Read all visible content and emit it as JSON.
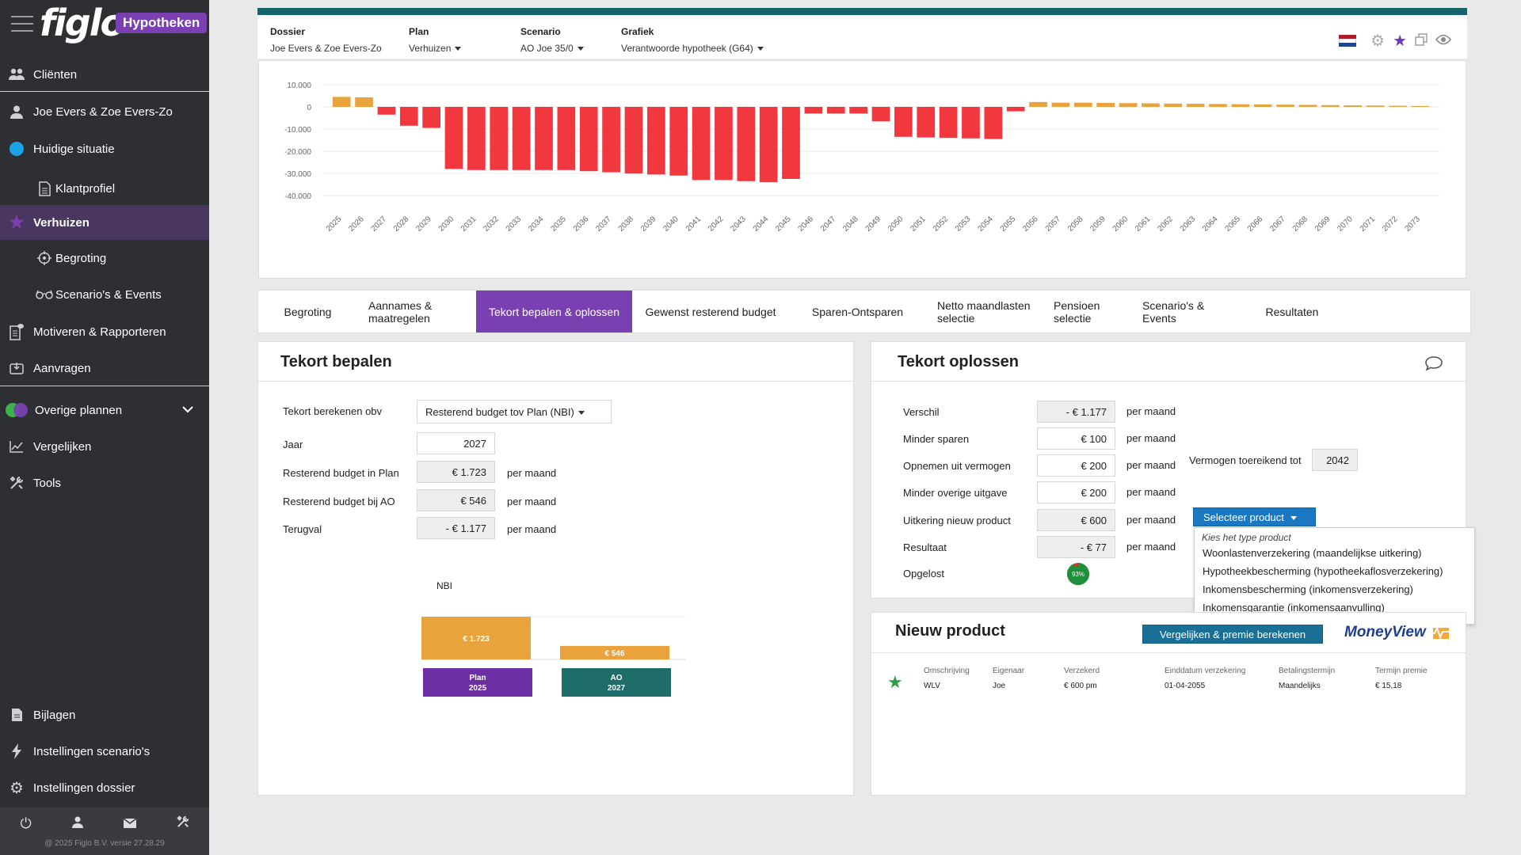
{
  "sidebar": {
    "brand": "figlo",
    "brand_badge": "Hypotheken",
    "items": [
      {
        "label": "Cliënten",
        "icon": "users-icon"
      },
      {
        "label": "Joe Evers & Zoe Evers-Zo",
        "icon": "user-icon"
      },
      {
        "label": "Huidige situatie",
        "icon": "blue-dot-icon"
      },
      {
        "label": "Klantprofiel",
        "icon": "document-icon"
      },
      {
        "label": "Verhuizen",
        "icon": "star-icon"
      },
      {
        "label": "Begroting",
        "icon": "target-icon"
      },
      {
        "label": "Scenario's & Events",
        "icon": "glasses-icon"
      },
      {
        "label": "Motiveren & Rapporteren",
        "icon": "report-icon"
      },
      {
        "label": "Aanvragen",
        "icon": "send-icon"
      },
      {
        "label": "Overige plannen",
        "icon": "dual-dot-icon"
      },
      {
        "label": "Vergelijken",
        "icon": "chart-line-icon"
      },
      {
        "label": "Tools",
        "icon": "tools-icon"
      },
      {
        "label": "Bijlagen",
        "icon": "file-icon"
      },
      {
        "label": "Instellingen scenario's",
        "icon": "bolt-icon"
      },
      {
        "label": "Instellingen dossier",
        "icon": "gear-icon"
      }
    ],
    "copyright": "@ 2025 Figlo B.V. versie 27.28.29"
  },
  "topbar": {
    "dossier_label": "Dossier",
    "dossier_value": "Joe Evers & Zoe Evers-Zo",
    "plan_label": "Plan",
    "plan_value": "Verhuizen",
    "scenario_label": "Scenario",
    "scenario_value": "AO Joe 35/0",
    "grafiek_label": "Grafiek",
    "grafiek_value": "Verantwoorde hypotheek (G64)"
  },
  "chart_data": {
    "type": "bar",
    "categories": [
      "2025",
      "2026",
      "2027",
      "2028",
      "2029",
      "2030",
      "2031",
      "2032",
      "2033",
      "2034",
      "2035",
      "2036",
      "2037",
      "2038",
      "2039",
      "2040",
      "2041",
      "2042",
      "2043",
      "2044",
      "2045",
      "2046",
      "2047",
      "2048",
      "2049",
      "2050",
      "2051",
      "2052",
      "2053",
      "2054",
      "2055",
      "2056",
      "2057",
      "2058",
      "2059",
      "2060",
      "2061",
      "2062",
      "2063",
      "2064",
      "2065",
      "2066",
      "2067",
      "2068",
      "2069",
      "2070",
      "2071",
      "2072",
      "2073"
    ],
    "values": [
      4500,
      4300,
      -3500,
      -8500,
      -9500,
      -28000,
      -28500,
      -28500,
      -28500,
      -28500,
      -28500,
      -29000,
      -29500,
      -30000,
      -30500,
      -31000,
      -33000,
      -33000,
      -33500,
      -34000,
      -32500,
      -3000,
      -3000,
      -3000,
      -6500,
      -13500,
      -13800,
      -14000,
      -14200,
      -14500,
      -2000,
      2200,
      1900,
      1900,
      1800,
      1700,
      1600,
      1500,
      1400,
      1300,
      1200,
      1100,
      1000,
      900,
      800,
      700,
      600,
      500,
      400
    ],
    "yticks": [
      "10.000",
      "0",
      "-10.000",
      "-20.000",
      "-30.000",
      "-40.000"
    ],
    "ylim": [
      -40000,
      10000
    ],
    "positive_color": "#e8a33d",
    "negative_color": "#f0383e"
  },
  "tabs": [
    {
      "label": "Begroting",
      "active": false
    },
    {
      "label": "Aannames & maatregelen",
      "active": false
    },
    {
      "label": "Tekort bepalen & oplossen",
      "active": true
    },
    {
      "label": "Gewenst resterend budget",
      "active": false
    },
    {
      "label": "Sparen-Ontsparen",
      "active": false
    },
    {
      "label": "Netto maandlasten selectie",
      "active": false
    },
    {
      "label": "Pensioen selectie",
      "active": false
    },
    {
      "label": "Scenario's & Events",
      "active": false
    },
    {
      "label": "Resultaten",
      "active": false
    }
  ],
  "tekort_bepalen": {
    "title": "Tekort bepalen",
    "berekenen_label": "Tekort berekenen obv",
    "berekenen_value": "Resterend budget tov Plan (NBI)",
    "jaar_label": "Jaar",
    "jaar_value": "2027",
    "rb_plan_label": "Resterend budget in Plan",
    "rb_plan_value": "€ 1.723",
    "rb_ao_label": "Resterend budget bij AO",
    "rb_ao_value": "€ 546",
    "terugval_label": "Terugval",
    "terugval_value": "- € 1.177",
    "unit": "per maand",
    "mini_chart": {
      "title": "NBI",
      "bars": [
        {
          "value": 1723,
          "label": "€ 1.723",
          "color": "#e8a33d",
          "cat_line1": "Plan",
          "cat_line2": "2025",
          "cat_color": "#6b2fa3"
        },
        {
          "value": 546,
          "label": "€ 546",
          "color": "#e8a33d",
          "cat_line1": "AO",
          "cat_line2": "2027",
          "cat_color": "#1f6d69"
        }
      ]
    }
  },
  "tekort_oplossen": {
    "title": "Tekort oplossen",
    "unit": "per maand",
    "rows": [
      {
        "label": "Verschil",
        "value": "- € 1.177",
        "readonly": true
      },
      {
        "label": "Minder sparen",
        "value": "€ 100",
        "readonly": false
      },
      {
        "label": "Opnemen uit vermogen",
        "value": "€ 200",
        "readonly": false
      },
      {
        "label": "Minder overige uitgave",
        "value": "€ 200",
        "readonly": false
      },
      {
        "label": "Uitkering nieuw product",
        "value": "€ 600",
        "readonly": true
      },
      {
        "label": "Resultaat",
        "value": "- € 77",
        "readonly": true
      }
    ],
    "vermogen_label": "Vermogen toereikend tot",
    "vermogen_value": "2042",
    "opgelost_label": "Opgelost",
    "opgelost_pct": 93,
    "opgelost_text": "93%",
    "select_product_label": "Selecteer product",
    "dropdown_header": "Kies het type product",
    "dropdown_options": [
      "Woonlastenverzekering (maandelijkse uitkering)",
      "Hypotheekbescherming (hypotheekaflosverzekering)",
      "Inkomensbescherming (inkomensverzekering)",
      "Inkomensgarantie (inkomensaanvulling)"
    ]
  },
  "nieuw_product": {
    "title": "Nieuw product",
    "button_label": "Vergelijken & premie berekenen",
    "partner_logo": "MoneyView",
    "columns": [
      {
        "header": "Omschrijving",
        "value": "WLV"
      },
      {
        "header": "Eigenaar",
        "value": "Joe"
      },
      {
        "header": "Verzekerd",
        "value": "€ 600 pm"
      },
      {
        "header": "Einddatum verzekering",
        "value": "01-04-2055"
      },
      {
        "header": "Betalingstermijn",
        "value": "Maandelijks"
      },
      {
        "header": "Termijn premie",
        "value": "€ 15,18"
      }
    ]
  }
}
